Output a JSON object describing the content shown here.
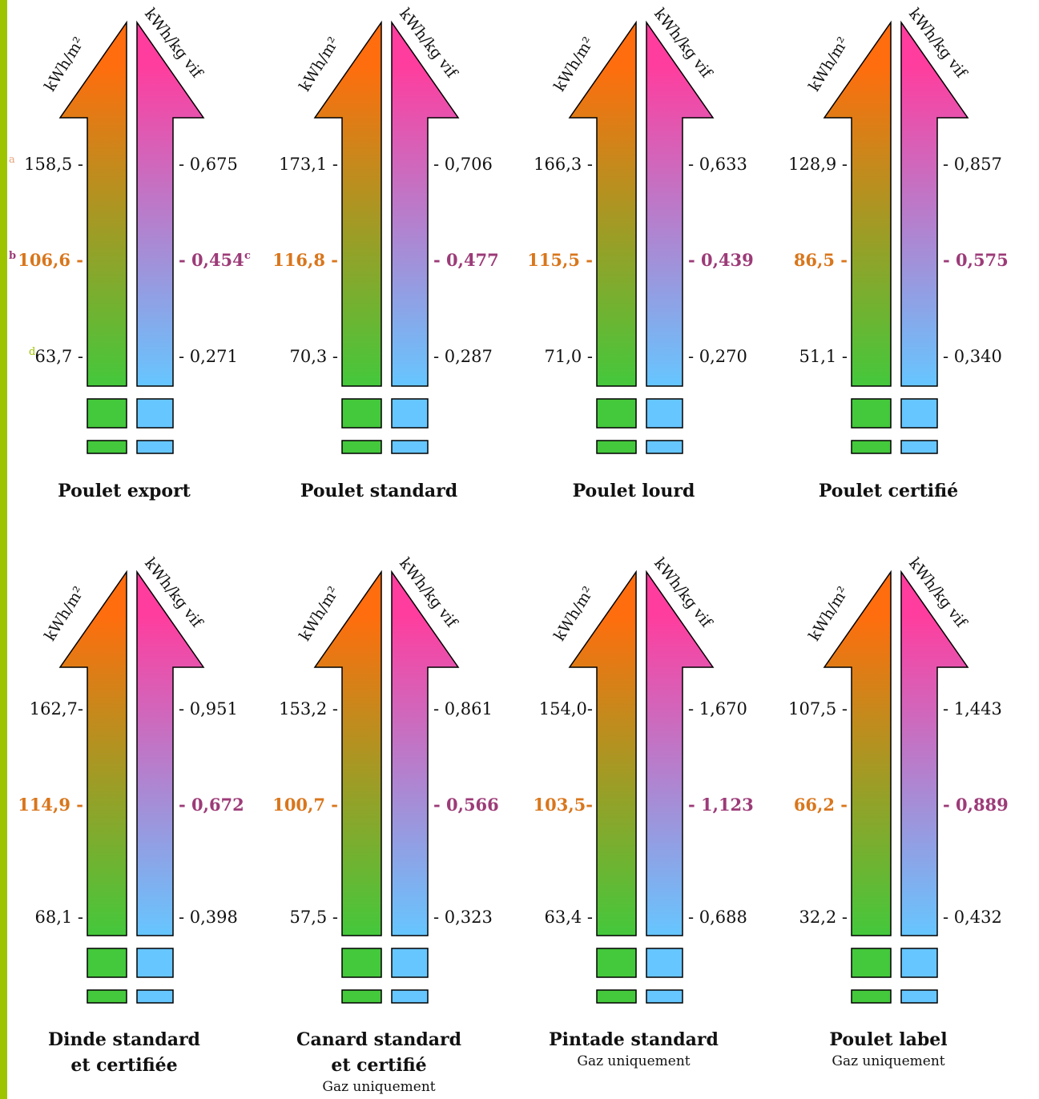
{
  "units": {
    "left": "kWh/m²",
    "right": "kWh/kg vif"
  },
  "notes": {
    "a": "a",
    "b": "b",
    "c": "c",
    "d": "d"
  },
  "colors": {
    "orange": "#ff6d0e",
    "green": "#44c83c",
    "pink": "#ff3d9e",
    "blue": "#66c6ff",
    "mid_left_text": "#d9761c",
    "mid_right_text": "#9c3b78",
    "left_bar": "#9ec400"
  },
  "panels": [
    {
      "title": "Poulet export",
      "subtitle": "",
      "left": {
        "high": "158,5 -",
        "mid": "106,6 -",
        "low": "63,7 -"
      },
      "right": {
        "high": "- 0,675",
        "mid": "- 0,454",
        "low": "- 0,271"
      }
    },
    {
      "title": "Poulet standard",
      "subtitle": "",
      "left": {
        "high": "173,1 -",
        "mid": "116,8 -",
        "low": "70,3 -"
      },
      "right": {
        "high": "- 0,706",
        "mid": "- 0,477",
        "low": "- 0,287"
      }
    },
    {
      "title": "Poulet lourd",
      "subtitle": "",
      "left": {
        "high": "166,3 -",
        "mid": "115,5 -",
        "low": "71,0 -"
      },
      "right": {
        "high": "- 0,633",
        "mid": "- 0,439",
        "low": "- 0,270"
      }
    },
    {
      "title": "Poulet certifié",
      "subtitle": "",
      "left": {
        "high": "128,9 -",
        "mid": "86,5 -",
        "low": "51,1 -"
      },
      "right": {
        "high": "- 0,857",
        "mid": "- 0,575",
        "low": "- 0,340"
      }
    },
    {
      "title": "Dinde standard",
      "title2": "et certifiée",
      "subtitle": "",
      "left": {
        "high": "162,7-",
        "mid": "114,9 -",
        "low": "68,1 -"
      },
      "right": {
        "high": "- 0,951",
        "mid": "- 0,672",
        "low": "- 0,398"
      }
    },
    {
      "title": "Canard standard",
      "title2": "et certifié",
      "subtitle": "Gaz uniquement",
      "left": {
        "high": "153,2 -",
        "mid": "100,7 -",
        "low": "57,5 -"
      },
      "right": {
        "high": "- 0,861",
        "mid": "- 0,566",
        "low": "- 0,323"
      }
    },
    {
      "title": "Pintade standard",
      "subtitle": "Gaz uniquement",
      "left": {
        "high": "154,0-",
        "mid": "103,5-",
        "low": "63,4 -"
      },
      "right": {
        "high": "- 1,670",
        "mid": "- 1,123",
        "low": "- 0,688"
      }
    },
    {
      "title": "Poulet label",
      "subtitle": "Gaz uniquement",
      "left": {
        "high": "107,5 -",
        "mid": "66,2 -",
        "low": "32,2 -"
      },
      "right": {
        "high": "- 1,443",
        "mid": "- 0,889",
        "low": "- 0,432"
      }
    }
  ]
}
